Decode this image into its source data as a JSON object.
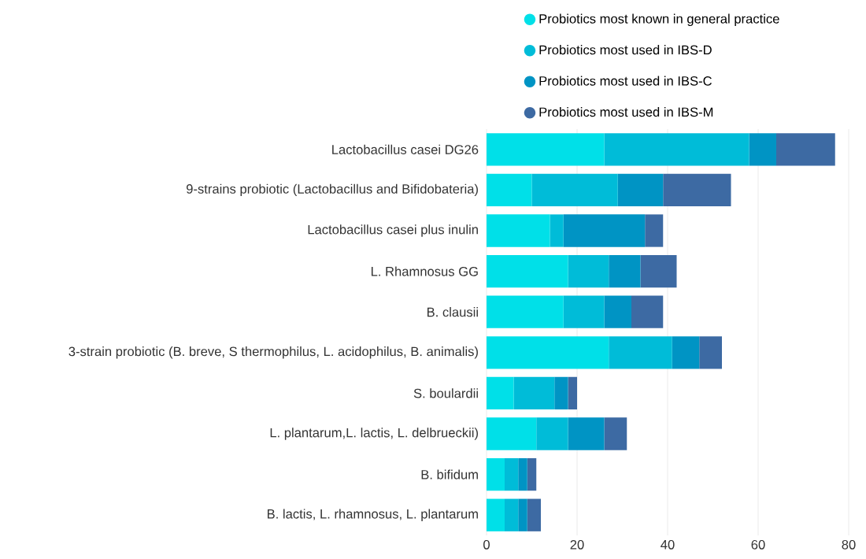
{
  "chart_data": {
    "type": "bar",
    "orientation": "horizontal",
    "stacked": true,
    "categories": [
      "Lactobacillus casei DG26",
      "9-strains probiotic (Lactobacillus and Bifidobateria)",
      "Lactobacillus casei plus inulin",
      "L. Rhamnosus GG",
      "B. clausii",
      "3-strain probiotic (B. breve, S thermophilus, L. acidophilus, B. animalis)",
      "S. boulardii",
      "L. plantarum,L. lactis, L. delbrueckii)",
      "B. bifidum",
      "B. lactis, L. rhamnosus, L. plantarum"
    ],
    "series": [
      {
        "name": "Probiotics most known in general practice",
        "color": "#00e0e8",
        "values": [
          26,
          10,
          14,
          18,
          17,
          27,
          6,
          11,
          4,
          4
        ]
      },
      {
        "name": "Probiotics most used in IBS-D",
        "color": "#00bcd8",
        "values": [
          32,
          19,
          3,
          9,
          9,
          14,
          9,
          7,
          3,
          3
        ]
      },
      {
        "name": "Probiotics most used in IBS-C",
        "color": "#0094c4",
        "values": [
          6,
          10,
          18,
          7,
          6,
          6,
          3,
          8,
          2,
          2
        ]
      },
      {
        "name": "Probiotics most used in IBS-M",
        "color": "#3d6aa3",
        "values": [
          13,
          15,
          4,
          8,
          7,
          5,
          2,
          5,
          2,
          3
        ]
      }
    ],
    "xlim": [
      0,
      80
    ],
    "xticks": [
      0,
      20,
      40,
      60,
      80
    ],
    "grid": "x",
    "legend": "top"
  }
}
